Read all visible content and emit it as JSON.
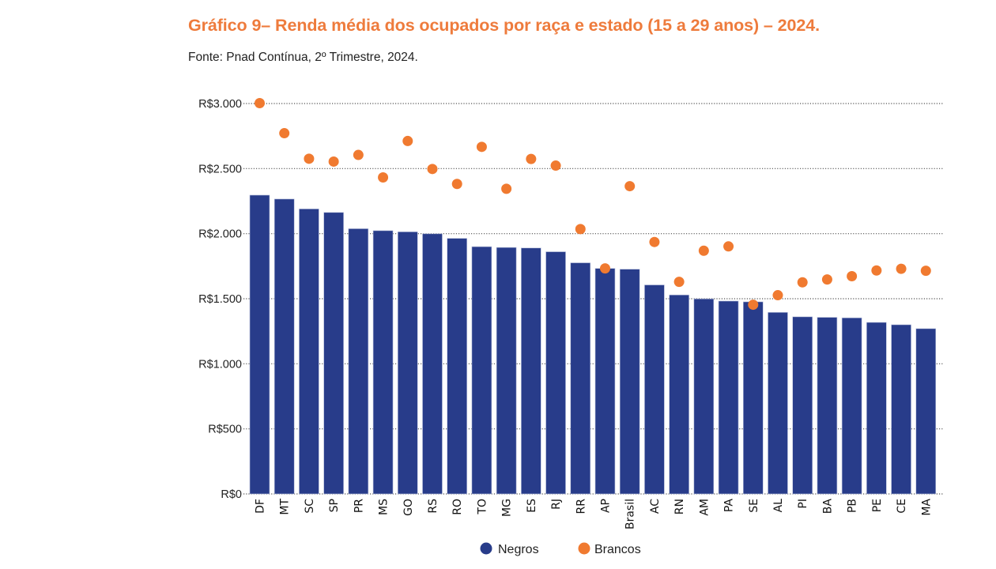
{
  "header": {
    "title": "Gráfico 9– Renda média dos ocupados por raça e estado (15 a 29 anos) – 2024.",
    "source": "Fonte: Pnad Contínua, 2º Trimestre, 2024."
  },
  "colors": {
    "title": "#EE7B3C",
    "negros": "#283C8A",
    "brancos": "#F07A30",
    "grid": "#555555"
  },
  "chart_data": {
    "type": "bar",
    "title": "Gráfico 9– Renda média dos ocupados por raça e estado (15 a 29 anos) – 2024.",
    "subtitle": "Fonte: Pnad Contínua, 2º Trimestre, 2024.",
    "xlabel": "",
    "ylabel": "",
    "ylim": [
      0,
      3000
    ],
    "yticks": [
      0,
      500,
      1000,
      1500,
      2000,
      2500,
      3000
    ],
    "ytick_labels": [
      "R$0",
      "R$500",
      "R$1.000",
      "R$1.500",
      "R$2.000",
      "R$2.500",
      "R$3.000"
    ],
    "grid": "horizontal-dotted",
    "legend_position": "bottom-center",
    "categories": [
      "DF",
      "MT",
      "SC",
      "SP",
      "PR",
      "MS",
      "GO",
      "RS",
      "RO",
      "TO",
      "MG",
      "ES",
      "RJ",
      "RR",
      "AP",
      "Brasil",
      "AC",
      "RN",
      "AM",
      "PA",
      "SE",
      "AL",
      "PI",
      "BA",
      "PB",
      "PE",
      "CE",
      "MA"
    ],
    "series": [
      {
        "name": "Negros",
        "mark": "bar",
        "values": [
          2296,
          2266,
          2190,
          2163,
          2038,
          2023,
          2014,
          1999,
          1964,
          1900,
          1894,
          1890,
          1861,
          1776,
          1733,
          1727,
          1606,
          1529,
          1499,
          1482,
          1476,
          1395,
          1361,
          1357,
          1353,
          1318,
          1300,
          1270
        ]
      },
      {
        "name": "Brancos",
        "mark": "dot",
        "values": [
          3003,
          2772,
          2576,
          2554,
          2605,
          2432,
          2712,
          2497,
          2382,
          2667,
          2345,
          2574,
          2523,
          2035,
          1733,
          2365,
          1936,
          1630,
          1869,
          1902,
          1454,
          1527,
          1626,
          1648,
          1673,
          1717,
          1730,
          1715
        ]
      }
    ]
  }
}
